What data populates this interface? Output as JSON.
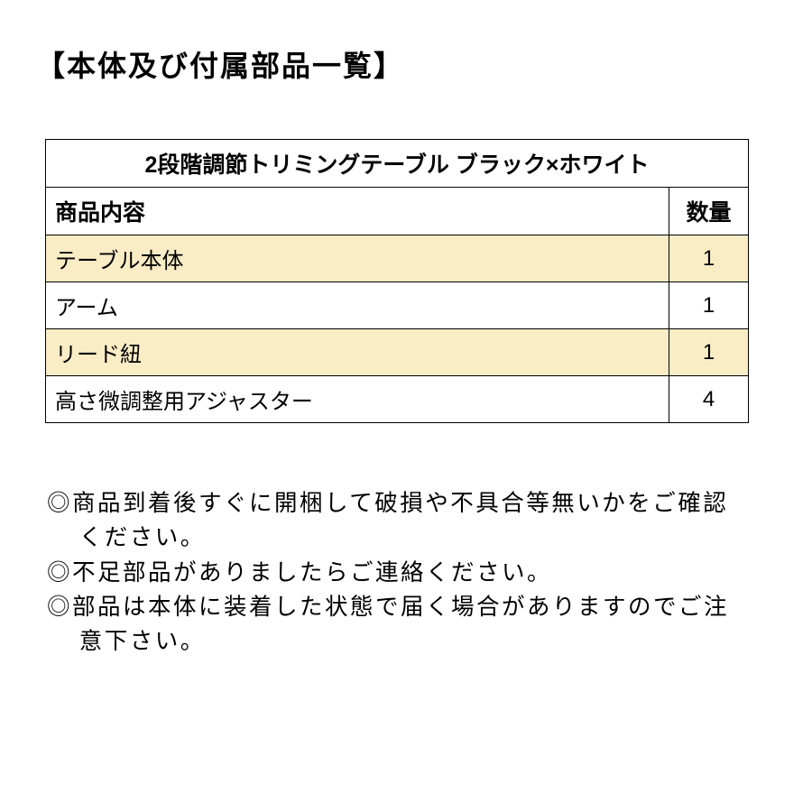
{
  "title": "【本体及び付属部品一覧】",
  "table": {
    "caption": "2段階調節トリミングテーブル ブラック×ホワイト",
    "header_item": "商品内容",
    "header_qty": "数量",
    "rows": [
      {
        "item": "テーブル本体",
        "qty": "1",
        "shaded": true
      },
      {
        "item": "アーム",
        "qty": "1",
        "shaded": false
      },
      {
        "item": "リード紐",
        "qty": "1",
        "shaded": true
      },
      {
        "item": "高さ微調整用アジャスター",
        "qty": "4",
        "shaded": false
      }
    ]
  },
  "notes": {
    "bullet": "◎",
    "items": [
      "商品到着後すぐに開梱して破損や不具合等無いかをご確認ください。",
      "不足部品がありましたらご連絡ください。",
      "部品は本体に装着した状態で届く場合がありますのでご注意下さい。"
    ]
  },
  "styling": {
    "background_color": "#ffffff",
    "text_color": "#000000",
    "shaded_row_color": "#faedc6",
    "border_color": "#000000",
    "title_fontsize": 32,
    "table_fontsize": 24,
    "note_fontsize": 25.5
  }
}
